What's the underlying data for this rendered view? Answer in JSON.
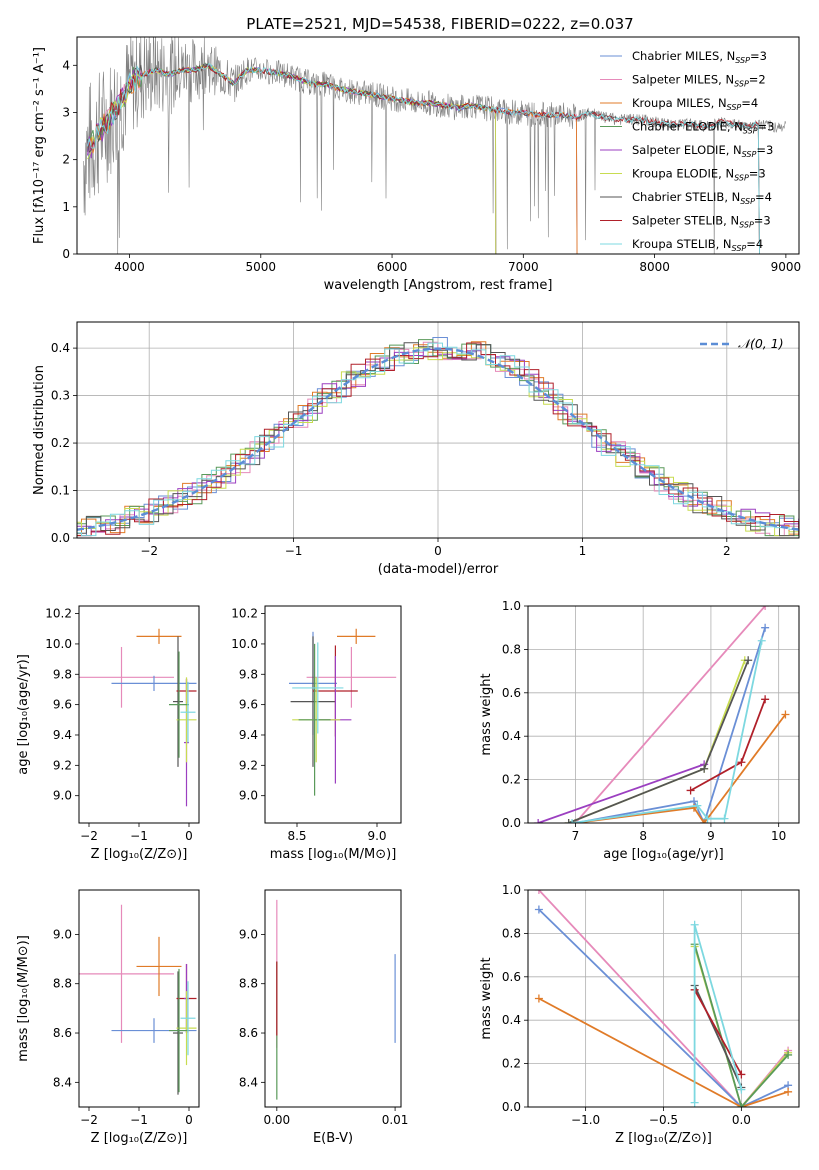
{
  "title": "PLATE=2521, MJD=54538, FIBERID=0222, z=0.037",
  "chart_data": [
    {
      "id": "spectrum",
      "type": "line",
      "xlabel": "wavelength [Angstrom, rest frame]",
      "ylabel": "Flux [fλ10⁻¹⁷ erg cm⁻² s⁻¹ A⁻¹]",
      "xlim": [
        3600,
        9100
      ],
      "ylim": [
        0,
        4.6
      ],
      "xticks": [
        4000,
        5000,
        6000,
        7000,
        8000,
        9000
      ],
      "yticks": [
        0,
        1,
        2,
        3,
        4
      ],
      "data": {
        "name": "data",
        "color": "#808080",
        "x": [
          3650,
          3700,
          3750,
          3800,
          3850,
          3900,
          3950,
          4000,
          4100,
          4200,
          4300,
          4400,
          4500,
          4600,
          4700,
          4800,
          4850,
          4900,
          5000,
          5100,
          5200,
          5300,
          5400,
          5500,
          5600,
          5700,
          5800,
          5900,
          6000,
          6100,
          6200,
          6300,
          6400,
          6500,
          6600,
          6700,
          6800,
          6900,
          7000,
          7100,
          7200,
          7300,
          7400,
          7500,
          7600,
          7700,
          7800,
          7900,
          8000,
          8100,
          8200,
          8300,
          8400,
          8500,
          8600,
          8700,
          8800,
          8900,
          9000
        ],
        "y": [
          2.0,
          2.3,
          2.5,
          2.7,
          2.9,
          3.1,
          3.3,
          3.6,
          3.8,
          3.9,
          3.8,
          3.9,
          3.9,
          4.0,
          3.8,
          3.6,
          3.8,
          3.9,
          3.9,
          3.85,
          3.8,
          3.7,
          3.6,
          3.6,
          3.5,
          3.45,
          3.4,
          3.35,
          3.3,
          3.25,
          3.2,
          3.2,
          3.15,
          3.1,
          3.15,
          3.1,
          3.05,
          3.0,
          3.0,
          2.95,
          2.95,
          2.95,
          2.9,
          3.0,
          2.9,
          2.85,
          2.85,
          2.85,
          2.8,
          2.75,
          2.75,
          2.75,
          2.7,
          2.8,
          2.75,
          2.7,
          2.75,
          2.7,
          2.7
        ]
      },
      "series": [
        {
          "name": "Chabrier MILES, N<sub>SSP</sub>=3",
          "label_main": "Chabrier MILES, N",
          "label_sub": "SSP",
          "label_tail": "=3",
          "color": "#6a8fd6",
          "cutoff": 7410
        },
        {
          "name": "Salpeter MILES, N<sub>SSP</sub>=2",
          "label_main": "Salpeter MILES, N",
          "label_sub": "SSP",
          "label_tail": "=2",
          "color": "#e68aba",
          "cutoff": 7410
        },
        {
          "name": "Kroupa MILES, N<sub>SSP</sub>=4",
          "label_main": "Kroupa MILES, N",
          "label_sub": "SSP",
          "label_tail": "=4",
          "color": "#e07b28",
          "cutoff": 7410
        },
        {
          "name": "Chabrier ELODIE, N<sub>SSP</sub>=3",
          "label_main": "Chabrier ELODIE, N",
          "label_sub": "SSP",
          "label_tail": "=3",
          "color": "#5a9a5a",
          "cutoff": 6790
        },
        {
          "name": "Salpeter ELODIE, N<sub>SSP</sub>=3",
          "label_main": "Salpeter ELODIE, N",
          "label_sub": "SSP",
          "label_tail": "=3",
          "color": "#9b3fc0",
          "cutoff": 6790
        },
        {
          "name": "Kroupa ELODIE, N<sub>SSP</sub>=3",
          "label_main": "Kroupa ELODIE, N",
          "label_sub": "SSP",
          "label_tail": "=3",
          "color": "#c8dc50",
          "cutoff": 6790
        },
        {
          "name": "Chabrier STELIB, N<sub>SSP</sub>=4",
          "label_main": "Chabrier STELIB, N",
          "label_sub": "SSP",
          "label_tail": "=4",
          "color": "#555555",
          "cutoff": 8800
        },
        {
          "name": "Salpeter STELIB, N<sub>SSP</sub>=3",
          "label_main": "Salpeter STELIB, N",
          "label_sub": "SSP",
          "label_tail": "=3",
          "color": "#b0202a",
          "cutoff": 8800
        },
        {
          "name": "Kroupa STELIB, N<sub>SSP</sub>=4",
          "label_main": "Kroupa STELIB, N",
          "label_sub": "SSP",
          "label_tail": "=4",
          "color": "#7dd8e0",
          "cutoff": 8800
        }
      ]
    },
    {
      "id": "residuals",
      "type": "line",
      "xlabel": "(data-model)/error",
      "ylabel": "Normed distribution",
      "xlim": [
        -2.5,
        2.5
      ],
      "ylim": [
        0,
        0.455
      ],
      "xticks": [
        -2,
        -1,
        0,
        1,
        2
      ],
      "yticks": [
        0.0,
        0.1,
        0.2,
        0.3,
        0.4
      ],
      "grid": true,
      "legend": {
        "label": "𝒩(0, 1)",
        "position": "top-right"
      },
      "gaussian": {
        "name": "N(0,1)",
        "color": "#5b8dd6"
      }
    },
    {
      "id": "age-vs-Z",
      "type": "scatter",
      "xlabel": "Z [log₁₀(Z/Z⊙)]",
      "ylabel": "age  [log₁₀(age/yr)]",
      "xlim": [
        -2.2,
        0.2
      ],
      "ylim": [
        8.82,
        10.25
      ],
      "xticks": [
        -2,
        -1,
        0
      ],
      "yticks": [
        9.0,
        9.2,
        9.4,
        9.6,
        9.8,
        10.0,
        10.2
      ],
      "points": [
        {
          "color": "#e68aba",
          "x": -1.35,
          "y": 9.78,
          "xerr": 1.05,
          "yerr": 0.2
        },
        {
          "color": "#6a8fd6",
          "x": -0.7,
          "y": 9.74,
          "xerr": 0.85,
          "yerr": 0.05
        },
        {
          "color": "#e07b28",
          "x": -0.6,
          "y": 10.05,
          "xerr": 0.45,
          "yerr": 0.05
        },
        {
          "color": "#555555",
          "x": -0.22,
          "y": 9.62,
          "xerr": 0.1,
          "yerr": 0.43
        },
        {
          "color": "#b0202a",
          "x": -0.05,
          "y": 9.69,
          "xerr": 0.2,
          "yerr": 0.08
        },
        {
          "color": "#9b3fc0",
          "x": -0.05,
          "y": 9.35,
          "xerr": 0.05,
          "yerr": 0.42
        },
        {
          "color": "#c8dc50",
          "x": -0.05,
          "y": 9.5,
          "xerr": 0.2,
          "yerr": 0.28
        },
        {
          "color": "#5a9a5a",
          "x": -0.2,
          "y": 9.6,
          "xerr": 0.2,
          "yerr": 0.35
        },
        {
          "color": "#7dd8e0",
          "x": -0.02,
          "y": 9.55,
          "xerr": 0.15,
          "yerr": 0.2
        }
      ]
    },
    {
      "id": "age-vs-mass",
      "type": "scatter",
      "xlabel": "mass [log₁₀(M/M⊙)]",
      "xlim": [
        8.3,
        9.15
      ],
      "ylim": [
        8.82,
        10.25
      ],
      "xticks": [
        8.5,
        9.0
      ],
      "yticks": [
        9.0,
        9.2,
        9.4,
        9.6,
        9.8,
        10.0,
        10.2
      ],
      "points": [
        {
          "color": "#e68aba",
          "x": 8.84,
          "y": 9.78,
          "xerr": 0.28,
          "yerr": 0.2
        },
        {
          "color": "#6a8fd6",
          "x": 8.6,
          "y": 9.74,
          "xerr": 0.15,
          "yerr": 0.34
        },
        {
          "color": "#e07b28",
          "x": 8.87,
          "y": 10.05,
          "xerr": 0.12,
          "yerr": 0.05
        },
        {
          "color": "#555555",
          "x": 8.6,
          "y": 9.62,
          "xerr": 0.14,
          "yerr": 0.43
        },
        {
          "color": "#b0202a",
          "x": 8.74,
          "y": 9.69,
          "xerr": 0.14,
          "yerr": 0.3
        },
        {
          "color": "#9b3fc0",
          "x": 8.74,
          "y": 9.5,
          "xerr": 0.1,
          "yerr": 0.42
        },
        {
          "color": "#c8dc50",
          "x": 8.62,
          "y": 9.5,
          "xerr": 0.15,
          "yerr": 0.28
        },
        {
          "color": "#5a9a5a",
          "x": 8.61,
          "y": 9.5,
          "xerr": 0.1,
          "yerr": 0.5
        },
        {
          "color": "#7dd8e0",
          "x": 8.63,
          "y": 9.71,
          "xerr": 0.16,
          "yerr": 0.3
        }
      ]
    },
    {
      "id": "mass-weight-vs-age",
      "type": "line",
      "xlabel": "age  [log₁₀(age/yr)]",
      "ylabel": "mass weight",
      "xlim": [
        6.3,
        10.3
      ],
      "ylim": [
        0,
        1.0
      ],
      "xticks": [
        7,
        8,
        9,
        10
      ],
      "yticks": [
        0.0,
        0.2,
        0.4,
        0.6,
        0.8,
        1.0
      ],
      "grid": true,
      "series": [
        {
          "color": "#e68aba",
          "x": [
            7.0,
            9.8
          ],
          "y": [
            0.0,
            1.0
          ]
        },
        {
          "color": "#6a8fd6",
          "x": [
            7.0,
            8.75,
            8.9,
            9.8
          ],
          "y": [
            0.0,
            0.1,
            0.0,
            0.9
          ]
        },
        {
          "color": "#e07b28",
          "x": [
            7.0,
            8.75,
            8.9,
            10.1
          ],
          "y": [
            0.0,
            0.07,
            0.0,
            0.5
          ]
        },
        {
          "color": "#9b3fc0",
          "x": [
            6.45,
            8.9
          ],
          "y": [
            0.0,
            0.27
          ]
        },
        {
          "color": "#c8dc50",
          "x": [
            6.9,
            8.9,
            9.5
          ],
          "y": [
            0.0,
            0.25,
            0.75
          ]
        },
        {
          "color": "#555555",
          "x": [
            6.9,
            8.9,
            9.55
          ],
          "y": [
            0.0,
            0.25,
            0.75
          ]
        },
        {
          "color": "#b0202a",
          "x": [
            8.7,
            9.45,
            9.8
          ],
          "y": [
            0.15,
            0.28,
            0.57
          ]
        },
        {
          "color": "#7dd8e0",
          "x": [
            6.95,
            8.8,
            8.95,
            9.2,
            9.75
          ],
          "y": [
            0.0,
            0.08,
            0.02,
            0.02,
            0.84
          ]
        }
      ]
    },
    {
      "id": "mass-vs-Z",
      "type": "scatter",
      "xlabel": "Z [log₁₀(Z/Z⊙)]",
      "ylabel": "mass [log₁₀(M/M⊙)]",
      "xlim": [
        -2.2,
        0.2
      ],
      "ylim": [
        8.3,
        9.18
      ],
      "xticks": [
        -2,
        -1,
        0
      ],
      "yticks": [
        8.4,
        8.6,
        8.8,
        9.0
      ],
      "points": [
        {
          "color": "#e68aba",
          "x": -1.35,
          "y": 8.84,
          "xerr": 1.05,
          "yerr": 0.28
        },
        {
          "color": "#6a8fd6",
          "x": -0.7,
          "y": 8.61,
          "xerr": 0.85,
          "yerr": 0.05
        },
        {
          "color": "#e07b28",
          "x": -0.6,
          "y": 8.87,
          "xerr": 0.45,
          "yerr": 0.12
        },
        {
          "color": "#555555",
          "x": -0.22,
          "y": 8.6,
          "xerr": 0.1,
          "yerr": 0.25
        },
        {
          "color": "#b0202a",
          "x": -0.05,
          "y": 8.74,
          "xerr": 0.2,
          "yerr": 0.14
        },
        {
          "color": "#9b3fc0",
          "x": -0.05,
          "y": 8.74,
          "xerr": 0.05,
          "yerr": 0.14
        },
        {
          "color": "#c8dc50",
          "x": -0.05,
          "y": 8.62,
          "xerr": 0.2,
          "yerr": 0.15
        },
        {
          "color": "#5a9a5a",
          "x": -0.2,
          "y": 8.61,
          "xerr": 0.2,
          "yerr": 0.25
        },
        {
          "color": "#7dd8e0",
          "x": -0.02,
          "y": 8.66,
          "xerr": 0.15,
          "yerr": 0.15
        }
      ]
    },
    {
      "id": "mass-vs-EBV",
      "type": "scatter",
      "xlabel": "E(B-V)",
      "xlim": [
        -0.001,
        0.0105
      ],
      "ylim": [
        8.3,
        9.18
      ],
      "xticks": [
        0.0,
        0.01
      ],
      "xticklabels": [
        "0.00",
        "0.01"
      ],
      "yticks": [
        8.4,
        8.6,
        8.8,
        9.0
      ],
      "points": [
        {
          "color": "#e68aba",
          "x": 0.0,
          "y": 8.84,
          "xerr": 0.0,
          "yerr": 0.3
        },
        {
          "color": "#5a9a5a",
          "x": 0.0,
          "y": 8.61,
          "xerr": 0.0,
          "yerr": 0.28
        },
        {
          "color": "#b0202a",
          "x": 0.0,
          "y": 8.74,
          "xerr": 0.0,
          "yerr": 0.15
        },
        {
          "color": "#6a8fd6",
          "x": 0.01,
          "y": 8.74,
          "xerr": 0.0,
          "yerr": 0.18
        }
      ]
    },
    {
      "id": "mass-weight-vs-Z",
      "type": "line",
      "xlabel": "Z [log₁₀(Z/Z⊙)]",
      "ylabel": "mass weight",
      "xlim": [
        -1.37,
        0.37
      ],
      "ylim": [
        0,
        1.0
      ],
      "xticks": [
        -1.0,
        -0.5,
        0.0
      ],
      "xticklabels": [
        "−1.0",
        "−0.5",
        "0.0"
      ],
      "yticks": [
        0.0,
        0.2,
        0.4,
        0.6,
        0.8,
        1.0
      ],
      "grid": true,
      "series": [
        {
          "color": "#e68aba",
          "x": [
            -1.3,
            0.0,
            0.3
          ],
          "y": [
            1.0,
            0.0,
            0.26
          ]
        },
        {
          "color": "#6a8fd6",
          "x": [
            -1.3,
            0.0,
            0.3
          ],
          "y": [
            0.91,
            0.0,
            0.1
          ]
        },
        {
          "color": "#e07b28",
          "x": [
            -1.3,
            0.0,
            0.3
          ],
          "y": [
            0.5,
            0.0,
            0.07
          ]
        },
        {
          "color": "#c8dc50",
          "x": [
            -0.3,
            0.0,
            0.3
          ],
          "y": [
            0.74,
            0.0,
            0.25
          ]
        },
        {
          "color": "#5a9a5a",
          "x": [
            -0.3,
            0.0,
            0.3
          ],
          "y": [
            0.75,
            0.0,
            0.24
          ]
        },
        {
          "color": "#555555",
          "x": [
            -0.3,
            0.0
          ],
          "y": [
            0.56,
            0.09
          ]
        },
        {
          "color": "#b0202a",
          "x": [
            -0.3,
            0.0
          ],
          "y": [
            0.54,
            0.15
          ]
        },
        {
          "color": "#7dd8e0",
          "x": [
            -0.3,
            -0.3,
            0.0
          ],
          "y": [
            0.02,
            0.84,
            0.08
          ]
        }
      ]
    }
  ]
}
